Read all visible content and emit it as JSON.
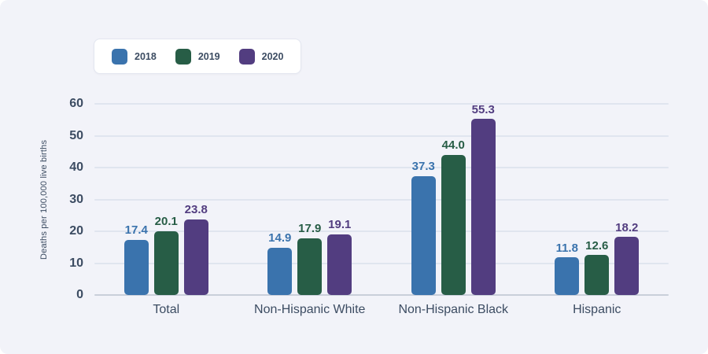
{
  "card": {
    "background": "#f2f3f9"
  },
  "legend": {
    "items": [
      {
        "label": "2018",
        "color": "#3a73ad"
      },
      {
        "label": "2019",
        "color": "#275d46"
      },
      {
        "label": "2020",
        "color": "#523d80"
      }
    ]
  },
  "chart_data": {
    "type": "bar",
    "categories": [
      "Total",
      "Non-Hispanic White",
      "Non-Hispanic Black",
      "Hispanic"
    ],
    "series": [
      {
        "name": "2018",
        "color": "#3a73ad",
        "values": [
          17.4,
          14.9,
          37.3,
          11.8
        ]
      },
      {
        "name": "2019",
        "color": "#275d46",
        "values": [
          20.1,
          17.9,
          44.0,
          12.6
        ]
      },
      {
        "name": "2020",
        "color": "#523d80",
        "values": [
          23.8,
          19.1,
          55.3,
          18.2
        ]
      }
    ],
    "title": "",
    "xlabel": "",
    "ylabel": "Deaths per 100,000 live births",
    "ylim": [
      0,
      60
    ],
    "ytick_step": 10,
    "yticks": [
      0,
      10,
      20,
      30,
      40,
      50,
      60
    ],
    "grid": true,
    "legend_position": "top-left",
    "value_labels": true,
    "value_label_decimals": 1
  }
}
